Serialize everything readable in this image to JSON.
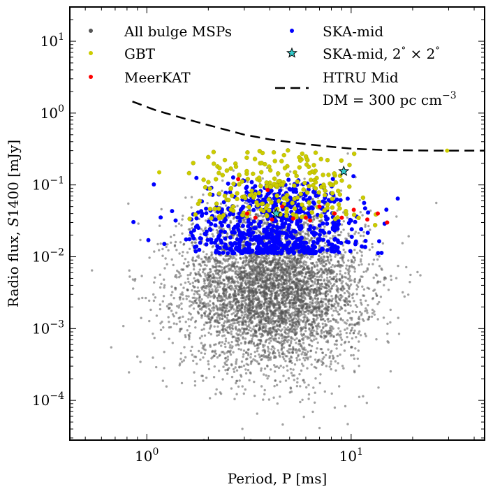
{
  "chart_data": {
    "type": "scatter",
    "xlabel": "Period, P [ms]",
    "ylabel": "Radio flux, S1400 [mJy]",
    "ylabel_parts": {
      "pre": "Radio flux, ",
      "ital": "S",
      "post": "1400 [mJy]"
    },
    "xscale": "log",
    "yscale": "log",
    "xlim": [
      0.42,
      45
    ],
    "ylim": [
      2.8e-05,
      30
    ],
    "grid": false,
    "legend_position": "top",
    "x_ticks": [
      {
        "value": 1,
        "base": "10",
        "exp": "0"
      },
      {
        "value": 10,
        "base": "10",
        "exp": "1"
      }
    ],
    "y_ticks": [
      {
        "value": 0.0001,
        "base": "10",
        "exp": "−4"
      },
      {
        "value": 0.001,
        "base": "10",
        "exp": "−3"
      },
      {
        "value": 0.01,
        "base": "10",
        "exp": "−2"
      },
      {
        "value": 0.1,
        "base": "10",
        "exp": "−1"
      },
      {
        "value": 1,
        "base": "10",
        "exp": "0"
      },
      {
        "value": 10,
        "base": "10",
        "exp": "1"
      }
    ],
    "series": [
      {
        "name": "All bulge MSPs",
        "marker": "dot",
        "color": "#555555",
        "distribution": {
          "x_log_mean": 0.62,
          "x_log_sd": 0.22,
          "y_log_mean": -2.45,
          "y_log_sd": 0.55,
          "x_log_min": -0.33,
          "x_log_max": 1.62,
          "y_log_min": -4.55,
          "y_log_max": -0.55
        }
      },
      {
        "name": "SKA-mid",
        "marker": "dot",
        "color": "#0000ff",
        "distribution": {
          "x_log_mean": 0.62,
          "x_log_sd": 0.2,
          "y_log_min": -1.95,
          "y_log_max": -0.85,
          "x_log_min": -0.1,
          "x_log_max": 1.35
        }
      },
      {
        "name": "GBT",
        "marker": "dot",
        "color": "#cccc00",
        "distribution": {
          "x_log_mean": 0.65,
          "x_log_sd": 0.2,
          "y_log_min": -1.45,
          "y_log_max": -0.5,
          "x_log_min": 0.06,
          "x_log_max": 1.25
        }
      },
      {
        "name": "MeerKAT",
        "marker": "dot",
        "color": "#ff0000",
        "points": [
          {
            "x": 2.8,
            "y": 0.12
          },
          {
            "x": 3.1,
            "y": 0.04
          },
          {
            "x": 3.4,
            "y": 0.035
          },
          {
            "x": 4.1,
            "y": 0.033
          },
          {
            "x": 4.6,
            "y": 0.05
          },
          {
            "x": 5.2,
            "y": 0.034
          },
          {
            "x": 6.0,
            "y": 0.035
          },
          {
            "x": 6.3,
            "y": 0.032
          },
          {
            "x": 7.0,
            "y": 0.05
          },
          {
            "x": 8.3,
            "y": 0.04
          },
          {
            "x": 9.0,
            "y": 0.035
          },
          {
            "x": 10.3,
            "y": 0.045
          },
          {
            "x": 12.0,
            "y": 0.033
          },
          {
            "x": 13.5,
            "y": 0.04
          },
          {
            "x": 15.0,
            "y": 0.03
          },
          {
            "x": 3.9,
            "y": 0.085
          }
        ]
      },
      {
        "name": "SKA-mid, 2° × 2°",
        "name_parts": {
          "pre": "SKA-mid, 2",
          "mid": " × 2"
        },
        "marker": "star",
        "color": "#33cccc",
        "points": [
          {
            "x": 9.2,
            "y": 0.155
          },
          {
            "x": 4.3,
            "y": 0.04
          }
        ]
      }
    ],
    "curves": [
      {
        "name": "HTRU Mid",
        "name_line2": {
          "pre": "DM = 300 pc cm",
          "exp": "−3"
        },
        "style": "dashed",
        "color": "#000000",
        "points": [
          {
            "x": 0.85,
            "y": 1.45
          },
          {
            "x": 1.1,
            "y": 1.1
          },
          {
            "x": 1.5,
            "y": 0.85
          },
          {
            "x": 2.0,
            "y": 0.68
          },
          {
            "x": 3.0,
            "y": 0.5
          },
          {
            "x": 4.0,
            "y": 0.43
          },
          {
            "x": 6.0,
            "y": 0.37
          },
          {
            "x": 8.0,
            "y": 0.34
          },
          {
            "x": 10.0,
            "y": 0.32
          },
          {
            "x": 15.0,
            "y": 0.305
          },
          {
            "x": 25.0,
            "y": 0.3
          },
          {
            "x": 45.0,
            "y": 0.3
          }
        ]
      }
    ]
  }
}
